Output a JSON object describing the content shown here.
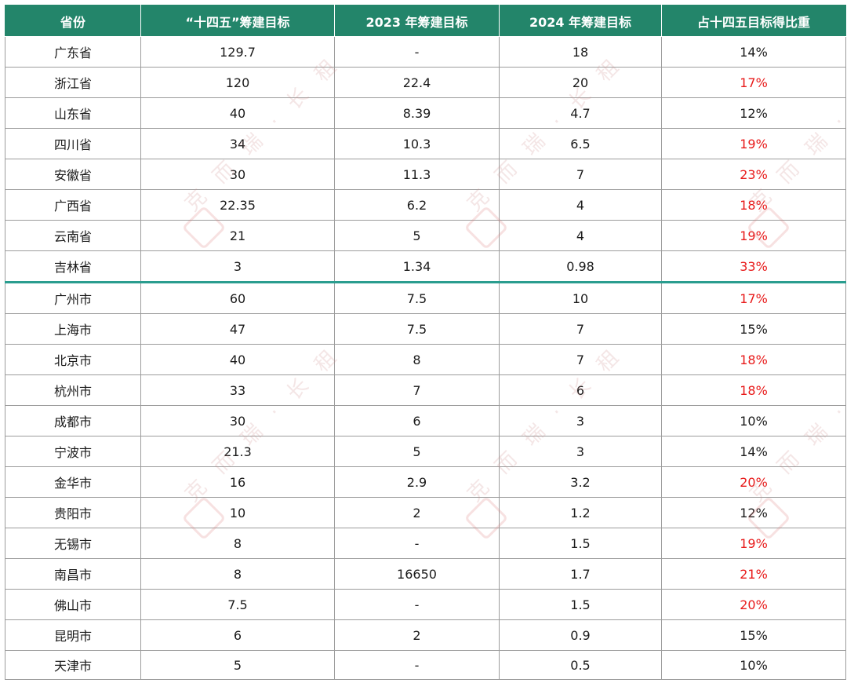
{
  "table": {
    "headers": [
      "省份",
      "“十四五”筹建目标",
      "2023 年筹建目标",
      "2024 年筹建目标",
      "占十四五目标得比重"
    ],
    "rows": [
      {
        "name": "广东省",
        "c1": "129.7",
        "c2": "-",
        "c3": "18",
        "c4": "14%",
        "highlight": false
      },
      {
        "name": "浙江省",
        "c1": "120",
        "c2": "22.4",
        "c3": "20",
        "c4": "17%",
        "highlight": true
      },
      {
        "name": "山东省",
        "c1": "40",
        "c2": "8.39",
        "c3": "4.7",
        "c4": "12%",
        "highlight": false
      },
      {
        "name": "四川省",
        "c1": "34",
        "c2": "10.3",
        "c3": "6.5",
        "c4": "19%",
        "highlight": true
      },
      {
        "name": "安徽省",
        "c1": "30",
        "c2": "11.3",
        "c3": "7",
        "c4": "23%",
        "highlight": true
      },
      {
        "name": "广西省",
        "c1": "22.35",
        "c2": "6.2",
        "c3": "4",
        "c4": "18%",
        "highlight": true
      },
      {
        "name": "云南省",
        "c1": "21",
        "c2": "5",
        "c3": "4",
        "c4": "19%",
        "highlight": true
      },
      {
        "name": "吉林省",
        "c1": "3",
        "c2": "1.34",
        "c3": "0.98",
        "c4": "33%",
        "highlight": true
      },
      {
        "name": "广州市",
        "c1": "60",
        "c2": "7.5",
        "c3": "10",
        "c4": "17%",
        "highlight": true
      },
      {
        "name": "上海市",
        "c1": "47",
        "c2": "7.5",
        "c3": "7",
        "c4": "15%",
        "highlight": false
      },
      {
        "name": "北京市",
        "c1": "40",
        "c2": "8",
        "c3": "7",
        "c4": "18%",
        "highlight": true
      },
      {
        "name": "杭州市",
        "c1": "33",
        "c2": "7",
        "c3": "6",
        "c4": "18%",
        "highlight": true
      },
      {
        "name": "成都市",
        "c1": "30",
        "c2": "6",
        "c3": "3",
        "c4": "10%",
        "highlight": false
      },
      {
        "name": "宁波市",
        "c1": "21.3",
        "c2": "5",
        "c3": "3",
        "c4": "14%",
        "highlight": false
      },
      {
        "name": "金华市",
        "c1": "16",
        "c2": "2.9",
        "c3": "3.2",
        "c4": "20%",
        "highlight": true
      },
      {
        "name": "贵阳市",
        "c1": "10",
        "c2": "2",
        "c3": "1.2",
        "c4": "12%",
        "highlight": false
      },
      {
        "name": "无锡市",
        "c1": "8",
        "c2": "-",
        "c3": "1.5",
        "c4": "19%",
        "highlight": true
      },
      {
        "name": "南昌市",
        "c1": "8",
        "c2": "16650",
        "c3": "1.7",
        "c4": "21%",
        "highlight": true
      },
      {
        "name": "佛山市",
        "c1": "7.5",
        "c2": "-",
        "c3": "1.5",
        "c4": "20%",
        "highlight": true
      },
      {
        "name": "昆明市",
        "c1": "6",
        "c2": "2",
        "c3": "0.9",
        "c4": "15%",
        "highlight": false
      },
      {
        "name": "天津市",
        "c1": "5",
        "c2": "-",
        "c3": "0.5",
        "c4": "10%",
        "highlight": false
      }
    ]
  },
  "colors": {
    "header_bg": "#23856a",
    "separator": "#2a9d8f",
    "highlight_text": "#e81a1a"
  },
  "watermark": {
    "text": "克 而 瑞 · 长 租"
  }
}
